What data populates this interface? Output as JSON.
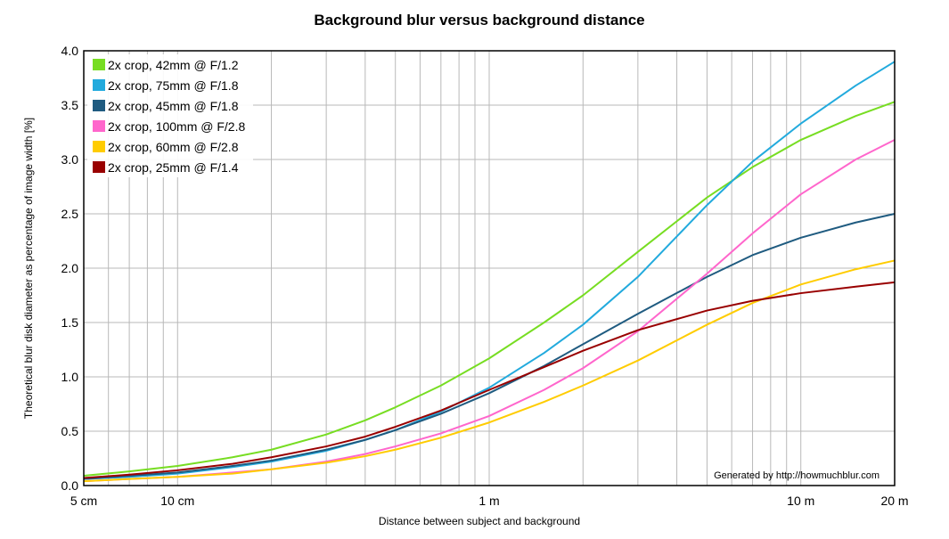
{
  "chart_data": {
    "type": "line",
    "title": "Background blur versus background distance",
    "xlabel": "Distance between subject and background",
    "ylabel": "Theoretical blur disk diameter as percentage of image width [%]",
    "x_scale": "log",
    "x_unit": "m",
    "xlim": [
      0.05,
      20
    ],
    "ylim": [
      0,
      4
    ],
    "grid": true,
    "legend_position": "top-left",
    "credit": "Generated by http://howmuchblur.com",
    "x_ticks": [
      {
        "value": 0.05,
        "label": "5 cm"
      },
      {
        "value": 0.1,
        "label": "10 cm"
      },
      {
        "value": 1,
        "label": "1 m"
      },
      {
        "value": 10,
        "label": "10 m"
      },
      {
        "value": 20,
        "label": "20 m"
      }
    ],
    "x_grid": [
      0.05,
      0.06,
      0.07,
      0.08,
      0.09,
      0.1,
      0.2,
      0.3,
      0.4,
      0.5,
      0.6,
      0.7,
      0.8,
      0.9,
      1,
      2,
      3,
      4,
      5,
      6,
      7,
      8,
      9,
      10,
      20
    ],
    "y_ticks": [
      {
        "value": 0,
        "label": "0.0"
      },
      {
        "value": 0.5,
        "label": "0.5"
      },
      {
        "value": 1,
        "label": "1.0"
      },
      {
        "value": 1.5,
        "label": "1.5"
      },
      {
        "value": 2,
        "label": "2.0"
      },
      {
        "value": 2.5,
        "label": "2.5"
      },
      {
        "value": 3,
        "label": "3.0"
      },
      {
        "value": 3.5,
        "label": "3.5"
      },
      {
        "value": 4,
        "label": "4.0"
      }
    ],
    "series": [
      {
        "name": "2x crop, 42mm @ F/1.2",
        "color": "#77dd22",
        "x": [
          0.05,
          0.07,
          0.1,
          0.15,
          0.2,
          0.3,
          0.4,
          0.5,
          0.7,
          1,
          1.5,
          2,
          3,
          5,
          7,
          10,
          15,
          20
        ],
        "y": [
          0.09,
          0.13,
          0.18,
          0.26,
          0.33,
          0.47,
          0.6,
          0.72,
          0.92,
          1.17,
          1.5,
          1.75,
          2.15,
          2.65,
          2.93,
          3.18,
          3.4,
          3.53
        ]
      },
      {
        "name": "2x crop, 75mm @ F/1.8",
        "color": "#22aadd",
        "x": [
          0.05,
          0.07,
          0.1,
          0.15,
          0.2,
          0.3,
          0.4,
          0.5,
          0.7,
          1,
          1.5,
          2,
          3,
          5,
          7,
          10,
          15,
          20
        ],
        "y": [
          0.06,
          0.08,
          0.11,
          0.17,
          0.22,
          0.32,
          0.42,
          0.51,
          0.68,
          0.9,
          1.22,
          1.48,
          1.92,
          2.58,
          2.98,
          3.33,
          3.68,
          3.9
        ]
      },
      {
        "name": "2x crop, 45mm @ F/1.8",
        "color": "#1f5b80",
        "x": [
          0.05,
          0.07,
          0.1,
          0.15,
          0.2,
          0.3,
          0.4,
          0.5,
          0.7,
          1,
          1.5,
          2,
          3,
          5,
          7,
          10,
          15,
          20
        ],
        "y": [
          0.06,
          0.09,
          0.12,
          0.18,
          0.23,
          0.33,
          0.42,
          0.51,
          0.66,
          0.85,
          1.1,
          1.3,
          1.58,
          1.92,
          2.12,
          2.28,
          2.42,
          2.5
        ]
      },
      {
        "name": "2x crop, 100mm @ F/2.8",
        "color": "#ff66cc",
        "x": [
          0.05,
          0.07,
          0.1,
          0.15,
          0.2,
          0.3,
          0.4,
          0.5,
          0.7,
          1,
          1.5,
          2,
          3,
          5,
          7,
          10,
          15,
          20
        ],
        "y": [
          0.04,
          0.06,
          0.08,
          0.12,
          0.15,
          0.22,
          0.29,
          0.36,
          0.48,
          0.64,
          0.88,
          1.08,
          1.42,
          1.95,
          2.32,
          2.68,
          3.0,
          3.18
        ]
      },
      {
        "name": "2x crop, 60mm @ F/2.8",
        "color": "#ffcc00",
        "x": [
          0.05,
          0.07,
          0.1,
          0.15,
          0.2,
          0.3,
          0.4,
          0.5,
          0.7,
          1,
          1.5,
          2,
          3,
          5,
          7,
          10,
          15,
          20
        ],
        "y": [
          0.04,
          0.06,
          0.08,
          0.11,
          0.15,
          0.21,
          0.27,
          0.33,
          0.44,
          0.58,
          0.77,
          0.92,
          1.15,
          1.48,
          1.68,
          1.85,
          1.99,
          2.07
        ]
      },
      {
        "name": "2x crop, 25mm @ F/1.4",
        "color": "#990000",
        "x": [
          0.05,
          0.07,
          0.1,
          0.15,
          0.2,
          0.3,
          0.4,
          0.5,
          0.7,
          1,
          1.5,
          2,
          3,
          5,
          7,
          10,
          15,
          20
        ],
        "y": [
          0.07,
          0.1,
          0.14,
          0.2,
          0.26,
          0.36,
          0.45,
          0.54,
          0.69,
          0.88,
          1.09,
          1.24,
          1.43,
          1.61,
          1.7,
          1.77,
          1.83,
          1.87
        ]
      }
    ]
  }
}
